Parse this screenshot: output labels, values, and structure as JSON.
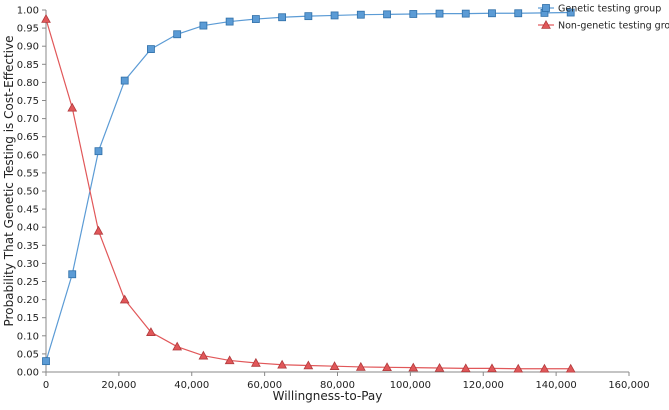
{
  "chart_data": {
    "type": "line",
    "title": "",
    "xlabel": "Willingness-to-Pay",
    "ylabel": "Probability That Genetic Testing is Cost-Effective",
    "xlim": [
      0,
      160000
    ],
    "ylim": [
      0,
      1.0
    ],
    "x_ticks": [
      0,
      20000,
      40000,
      60000,
      80000,
      100000,
      120000,
      140000,
      160000
    ],
    "x_tick_labels": [
      "0",
      "20,000",
      "40,000",
      "60,000",
      "80,000",
      "100,000",
      "120,000",
      "140,000",
      "160,000"
    ],
    "y_ticks": [
      0,
      0.05,
      0.1,
      0.15,
      0.2,
      0.25,
      0.3,
      0.35,
      0.4,
      0.45,
      0.5,
      0.55,
      0.6,
      0.65,
      0.7,
      0.75,
      0.8,
      0.85,
      0.9,
      0.95,
      1.0
    ],
    "y_tick_labels": [
      "0.00",
      "0.05",
      "0.10",
      "0.15",
      "0.20",
      "0.25",
      "0.30",
      "0.35",
      "0.40",
      "0.45",
      "0.50",
      "0.55",
      "0.60",
      "0.65",
      "0.70",
      "0.75",
      "0.80",
      "0.85",
      "0.90",
      "0.95",
      "1.00"
    ],
    "grid": false,
    "legend_position": "top-right",
    "x": [
      0,
      7200,
      14400,
      21600,
      28800,
      36000,
      43200,
      50400,
      57600,
      64800,
      72000,
      79200,
      86400,
      93600,
      100800,
      108000,
      115200,
      122400,
      129600,
      136800,
      144000
    ],
    "series": [
      {
        "name": "Genetic testing group",
        "marker": "square",
        "color": "#5b9bd5",
        "values": [
          0.03,
          0.27,
          0.61,
          0.805,
          0.892,
          0.933,
          0.957,
          0.968,
          0.975,
          0.98,
          0.983,
          0.985,
          0.987,
          0.988,
          0.989,
          0.99,
          0.99,
          0.991,
          0.991,
          0.992,
          0.993
        ]
      },
      {
        "name": "Non-genetic testing group",
        "marker": "triangle",
        "color": "#e15759",
        "values": [
          0.975,
          0.73,
          0.39,
          0.2,
          0.11,
          0.07,
          0.045,
          0.032,
          0.025,
          0.02,
          0.018,
          0.016,
          0.014,
          0.013,
          0.012,
          0.011,
          0.01,
          0.01,
          0.009,
          0.009,
          0.009
        ]
      }
    ]
  }
}
